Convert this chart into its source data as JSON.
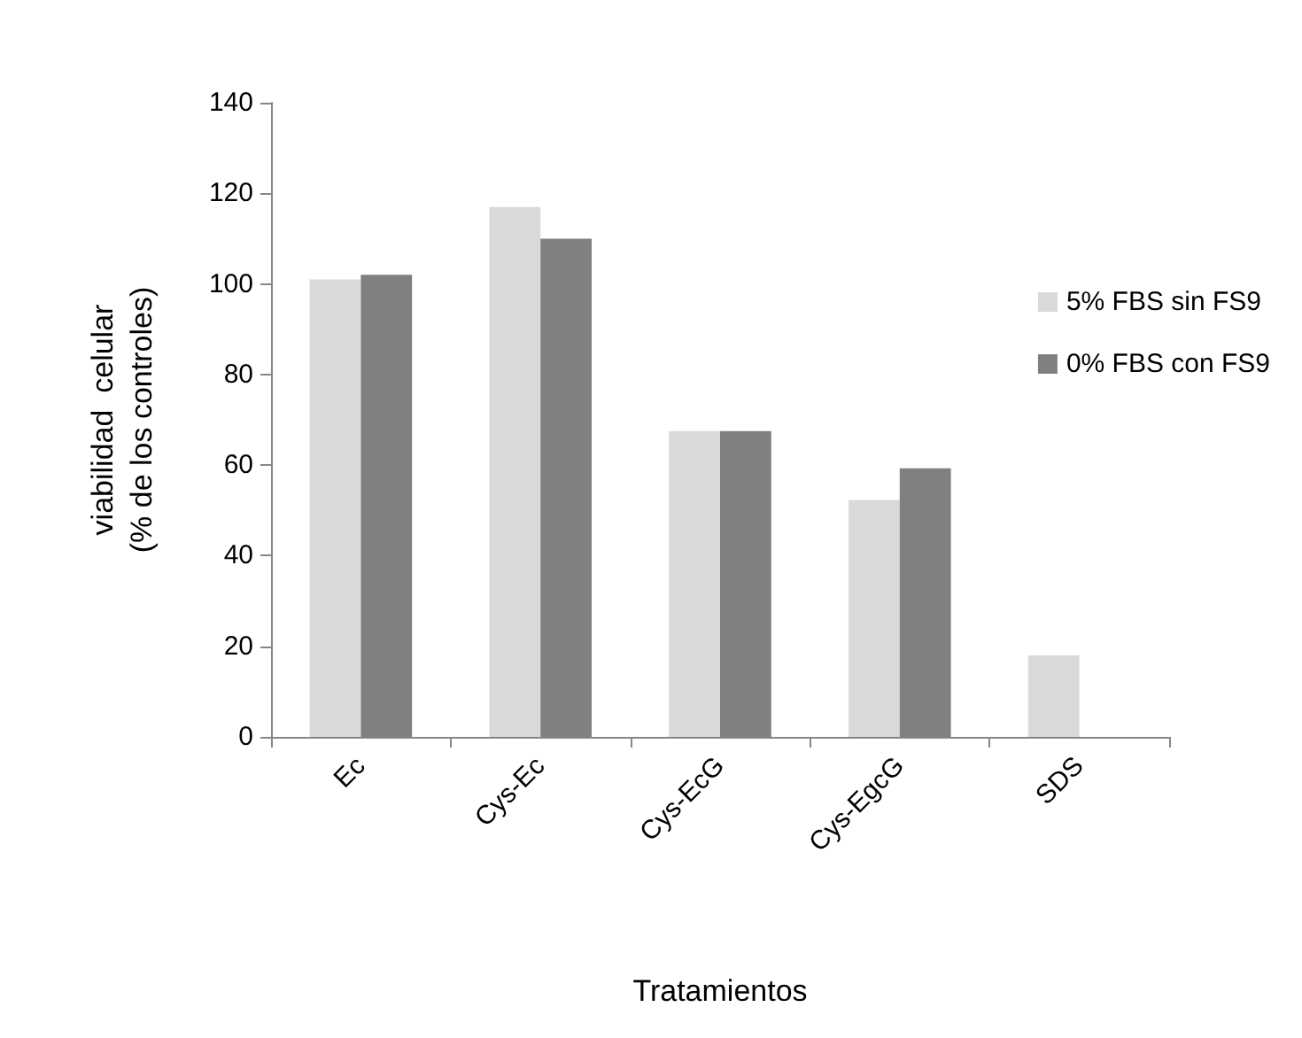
{
  "chart_data": {
    "type": "bar",
    "xlabel": "Tratamientos",
    "ylabel": "viabilidad  celular\n(% de los controles)",
    "categories": [
      "Ec",
      "Cys-Ec",
      "Cys-EcG",
      "Cys-EgcG",
      "SDS"
    ],
    "series": [
      {
        "name": "5% FBS sin FS9",
        "color": "#d9d9d9",
        "values": [
          101,
          117,
          67.5,
          52.3,
          18
        ]
      },
      {
        "name": "0% FBS con FS9",
        "color": "#808080",
        "values": [
          102,
          110,
          67.5,
          59.3,
          null
        ]
      }
    ],
    "ylim": [
      0,
      140
    ],
    "yticks": [
      0,
      20,
      40,
      60,
      80,
      100,
      120,
      140
    ],
    "grid": false,
    "legend": "right"
  }
}
